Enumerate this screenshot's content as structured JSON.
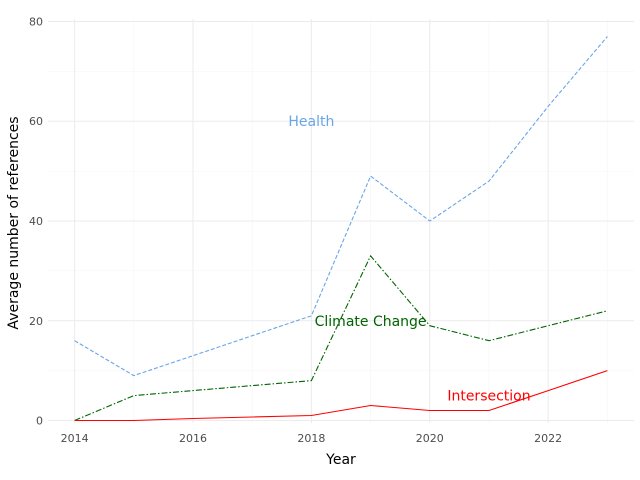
{
  "chart_data": {
    "type": "line",
    "title": "",
    "xlabel": "Year",
    "ylabel": "Average number of references",
    "xlim": [
      2013.55,
      2023.45
    ],
    "ylim": [
      -0.5,
      80.5
    ],
    "x_ticks": [
      2014,
      2016,
      2018,
      2020,
      2022
    ],
    "y_ticks": [
      0,
      20,
      40,
      60,
      80
    ],
    "grid": true,
    "legend": "none",
    "x": [
      2014,
      2015,
      2016,
      2017,
      2018,
      2019,
      2020,
      2021,
      2022,
      2023
    ],
    "series": [
      {
        "name": "Health",
        "color": "#6aa5e8",
        "dash": "dashed",
        "values": [
          16,
          9,
          13,
          17,
          21,
          49,
          40,
          48,
          63,
          77
        ],
        "label_at": [
          2018,
          60
        ]
      },
      {
        "name": "Climate Change",
        "color": "#006400",
        "dash": "dashdot",
        "values": [
          0,
          5,
          6,
          7,
          8,
          33,
          19,
          16,
          19,
          22
        ],
        "label_at": [
          2019,
          20
        ]
      },
      {
        "name": "Intersection",
        "color": "#ff0000",
        "dash": "solid",
        "values": [
          0,
          0,
          0.4,
          0.7,
          1,
          3,
          2,
          2,
          6,
          10
        ],
        "label_at": [
          2021,
          5
        ]
      }
    ]
  }
}
